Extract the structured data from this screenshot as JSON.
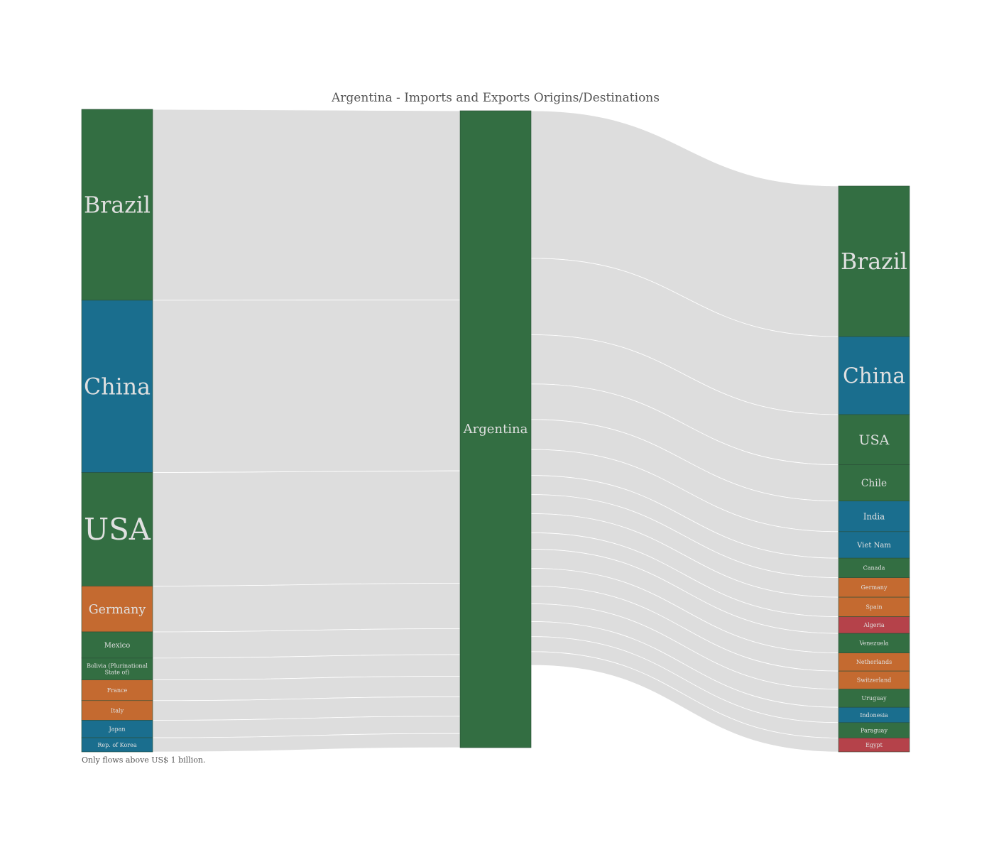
{
  "chart_data": {
    "type": "sankey",
    "title": "Argentina - Imports and Exports Origins/Destinations",
    "note": "Only flows above US$ 1 billion.",
    "center": {
      "name": "Argentina",
      "category": "Americas"
    },
    "imports": [
      {
        "name": "Brazil",
        "value": 17.5,
        "category": "Americas"
      },
      {
        "name": "China",
        "value": 15.8,
        "category": "Asia"
      },
      {
        "name": "USA",
        "value": 10.4,
        "category": "Americas"
      },
      {
        "name": "Germany",
        "value": 4.2,
        "category": "Europe"
      },
      {
        "name": "Mexico",
        "value": 2.4,
        "category": "Americas"
      },
      {
        "name": "Bolivia (Plurinational State of)",
        "value": 2.0,
        "category": "Americas"
      },
      {
        "name": "France",
        "value": 1.9,
        "category": "Europe"
      },
      {
        "name": "Italy",
        "value": 1.8,
        "category": "Europe"
      },
      {
        "name": "Japan",
        "value": 1.6,
        "category": "Asia"
      },
      {
        "name": "Rep. of Korea",
        "value": 1.3,
        "category": "Asia"
      }
    ],
    "exports": [
      {
        "name": "Brazil",
        "value": 10.8,
        "category": "Americas"
      },
      {
        "name": "China",
        "value": 5.6,
        "category": "Asia"
      },
      {
        "name": "USA",
        "value": 3.6,
        "category": "Americas"
      },
      {
        "name": "Chile",
        "value": 2.6,
        "category": "Americas"
      },
      {
        "name": "India",
        "value": 2.2,
        "category": "Asia"
      },
      {
        "name": "Viet Nam",
        "value": 1.9,
        "category": "Asia"
      },
      {
        "name": "Canada",
        "value": 1.4,
        "category": "Americas"
      },
      {
        "name": "Germany",
        "value": 1.4,
        "category": "Europe"
      },
      {
        "name": "Spain",
        "value": 1.4,
        "category": "Europe"
      },
      {
        "name": "Algeria",
        "value": 1.2,
        "category": "Africa"
      },
      {
        "name": "Venezuela",
        "value": 1.4,
        "category": "Americas"
      },
      {
        "name": "Netherlands",
        "value": 1.3,
        "category": "Europe"
      },
      {
        "name": "Switzerland",
        "value": 1.3,
        "category": "Europe"
      },
      {
        "name": "Uruguay",
        "value": 1.3,
        "category": "Americas"
      },
      {
        "name": "Indonesia",
        "value": 1.1,
        "category": "Asia"
      },
      {
        "name": "Paraguay",
        "value": 1.1,
        "category": "Americas"
      },
      {
        "name": "Egypt",
        "value": 1.0,
        "category": "Africa"
      }
    ],
    "colors": {
      "Americas": "#336e42",
      "Asia": "#1a6e8e",
      "Europe": "#c46a30",
      "Africa": "#b5424a",
      "link": "#dddddd"
    }
  }
}
